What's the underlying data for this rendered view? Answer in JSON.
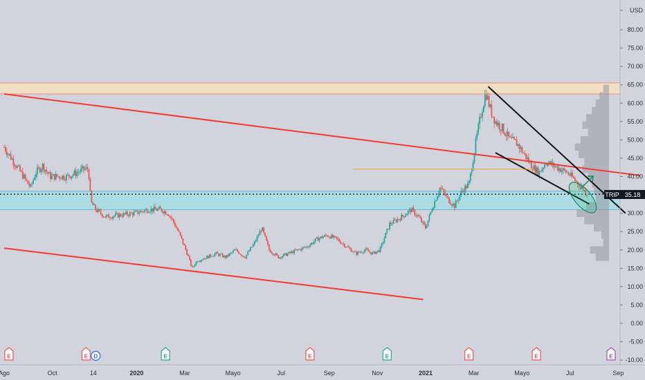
{
  "chart_data": {
    "type": "candlestick",
    "ticker": "TRIP",
    "currency": "USD",
    "last_price": "35.18",
    "ylim": [
      -10,
      85
    ],
    "y_ticks": [
      "USD",
      "80.00",
      "75.00",
      "70.00",
      "65.00",
      "60.00",
      "55.00",
      "50.00",
      "45.00",
      "40.00",
      "35.00",
      "30.00",
      "25.00",
      "20.00",
      "15.00",
      "10.00",
      "5.00",
      "0.00",
      "-5.00",
      "-10.00"
    ],
    "y_tick_values": [
      85,
      80,
      75,
      70,
      65,
      60,
      55,
      50,
      45,
      40,
      35,
      30,
      25,
      20,
      15,
      10,
      5,
      0,
      -5,
      -10
    ],
    "x_ticks": [
      {
        "label": "Ago",
        "t": 0.0
      },
      {
        "label": "Oct",
        "t": 2.0
      },
      {
        "label": "14",
        "t": 3.7
      },
      {
        "label": "2020",
        "t": 5.5,
        "bold": true
      },
      {
        "label": "Mar",
        "t": 7.5
      },
      {
        "label": "Mayo",
        "t": 9.5
      },
      {
        "label": "Jul",
        "t": 11.5
      },
      {
        "label": "Sep",
        "t": 13.5
      },
      {
        "label": "Nov",
        "t": 15.5
      },
      {
        "label": "2021",
        "t": 17.5,
        "bold": true
      },
      {
        "label": "Mar",
        "t": 19.5
      },
      {
        "label": "Mayo",
        "t": 21.5
      },
      {
        "label": "Jul",
        "t": 23.5
      },
      {
        "label": "Sep",
        "t": 25.5
      }
    ],
    "earnings_markers": [
      {
        "t": 0.2,
        "label": "E",
        "kind": "red"
      },
      {
        "t": 3.4,
        "label": "E",
        "kind": "red"
      },
      {
        "t": 3.8,
        "label": "D",
        "kind": "blue"
      },
      {
        "t": 6.7,
        "label": "E",
        "kind": "green"
      },
      {
        "t": 12.7,
        "label": "E",
        "kind": "red"
      },
      {
        "t": 15.9,
        "label": "E",
        "kind": "green"
      },
      {
        "t": 19.3,
        "label": "E",
        "kind": "red"
      },
      {
        "t": 22.1,
        "label": "E",
        "kind": "red"
      },
      {
        "t": 25.2,
        "label": "E",
        "kind": "purple"
      }
    ],
    "price_path": [
      [
        0.0,
        48
      ],
      [
        0.3,
        45
      ],
      [
        0.6,
        42
      ],
      [
        0.9,
        39
      ],
      [
        1.1,
        37
      ],
      [
        1.3,
        41
      ],
      [
        1.6,
        43
      ],
      [
        1.9,
        40
      ],
      [
        2.2,
        40
      ],
      [
        2.6,
        40
      ],
      [
        3.0,
        41
      ],
      [
        3.3,
        42
      ],
      [
        3.5,
        42
      ],
      [
        3.6,
        33
      ],
      [
        3.8,
        31
      ],
      [
        4.2,
        29
      ],
      [
        4.8,
        29.5
      ],
      [
        5.4,
        30
      ],
      [
        6.0,
        31
      ],
      [
        6.5,
        31
      ],
      [
        6.8,
        30
      ],
      [
        7.0,
        28
      ],
      [
        7.3,
        24
      ],
      [
        7.6,
        19
      ],
      [
        7.8,
        15
      ],
      [
        8.0,
        17
      ],
      [
        8.4,
        18
      ],
      [
        8.8,
        19
      ],
      [
        9.2,
        18
      ],
      [
        9.6,
        20
      ],
      [
        10.0,
        18
      ],
      [
        10.4,
        22
      ],
      [
        10.7,
        26
      ],
      [
        11.0,
        20
      ],
      [
        11.4,
        18
      ],
      [
        11.8,
        19
      ],
      [
        12.2,
        20
      ],
      [
        12.6,
        21
      ],
      [
        13.0,
        23
      ],
      [
        13.4,
        24
      ],
      [
        13.8,
        23
      ],
      [
        14.2,
        21
      ],
      [
        14.6,
        19
      ],
      [
        15.0,
        20
      ],
      [
        15.3,
        19
      ],
      [
        15.6,
        20
      ],
      [
        16.0,
        27
      ],
      [
        16.5,
        29
      ],
      [
        16.9,
        31
      ],
      [
        17.2,
        29
      ],
      [
        17.5,
        26
      ],
      [
        17.8,
        32
      ],
      [
        18.1,
        37
      ],
      [
        18.4,
        34
      ],
      [
        18.7,
        32
      ],
      [
        19.0,
        36
      ],
      [
        19.3,
        38
      ],
      [
        19.6,
        50
      ],
      [
        19.8,
        57
      ],
      [
        20.0,
        63
      ],
      [
        20.2,
        58
      ],
      [
        20.4,
        55
      ],
      [
        20.7,
        53
      ],
      [
        21.0,
        50
      ],
      [
        21.3,
        49
      ],
      [
        21.6,
        46
      ],
      [
        21.9,
        43
      ],
      [
        22.2,
        41
      ],
      [
        22.5,
        44
      ],
      [
        22.8,
        43
      ],
      [
        23.1,
        42
      ],
      [
        23.4,
        41
      ],
      [
        23.7,
        39
      ],
      [
        24.0,
        37
      ],
      [
        24.2,
        35.18
      ]
    ],
    "horizontal_zones": [
      {
        "from": 62.5,
        "to": 65.5,
        "color": "#f6dfbd"
      },
      {
        "from": 31.0,
        "to": 36.0,
        "color": "#a8dde6"
      }
    ],
    "trend_lines": [
      {
        "t1": 0,
        "p1": 62.5,
        "t2": 26.4,
        "p2": 40.3,
        "color": "#f23a2e"
      },
      {
        "t1": 0,
        "p1": 20.5,
        "t2": 17.4,
        "p2": 6.5,
        "color": "#f23a2e"
      },
      {
        "t1": 20.1,
        "p1": 64.5,
        "t2": 25.8,
        "p2": 30.0,
        "color": "#111111"
      },
      {
        "t1": 20.4,
        "p1": 46.5,
        "t2": 24.3,
        "p2": 32.5,
        "color": "#111111"
      },
      {
        "t1": 14.5,
        "p1": 42.0,
        "t2": 22.0,
        "p2": 42.0,
        "color": "#f2a43a"
      }
    ],
    "dotted_price_line": 35.18,
    "volume_profile": [
      {
        "p": 64,
        "w": 0.15
      },
      {
        "p": 62,
        "w": 0.25
      },
      {
        "p": 60,
        "w": 0.35
      },
      {
        "p": 58,
        "w": 0.45
      },
      {
        "p": 56,
        "w": 0.6
      },
      {
        "p": 54,
        "w": 0.7
      },
      {
        "p": 52,
        "w": 0.55
      },
      {
        "p": 50,
        "w": 0.75
      },
      {
        "p": 48,
        "w": 0.9
      },
      {
        "p": 46,
        "w": 0.8
      },
      {
        "p": 44,
        "w": 0.65
      },
      {
        "p": 42,
        "w": 0.7
      },
      {
        "p": 40,
        "w": 0.55
      },
      {
        "p": 38,
        "w": 0.45
      },
      {
        "p": 36,
        "w": 0.4
      },
      {
        "p": 34,
        "w": 0.35
      },
      {
        "p": 32,
        "w": 0.6
      },
      {
        "p": 30,
        "w": 0.85
      },
      {
        "p": 28,
        "w": 0.65
      },
      {
        "p": 26,
        "w": 0.4
      },
      {
        "p": 24,
        "w": 0.2
      },
      {
        "p": 22,
        "w": 0.15
      },
      {
        "p": 20,
        "w": 0.5
      },
      {
        "p": 18,
        "w": 0.35
      }
    ]
  }
}
